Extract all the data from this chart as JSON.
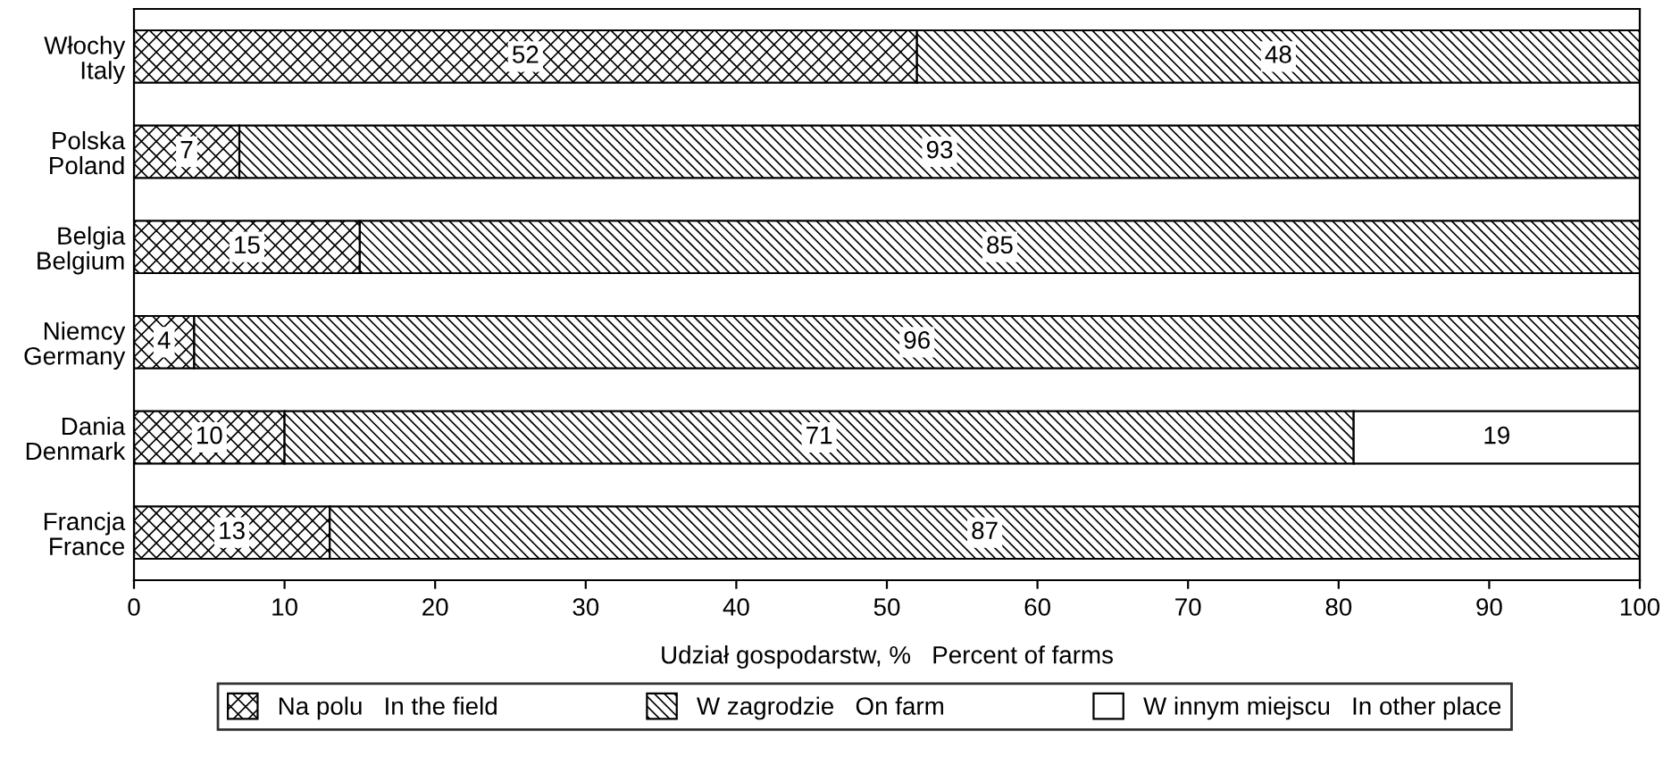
{
  "chart_data": {
    "type": "bar",
    "orientation": "horizontal",
    "stacked": true,
    "xlabel": "Udział gospodarstw, %   Percent of farms",
    "categories": [
      "Włochy\nItaly",
      "Polska\nPoland",
      "Belgia\nBelgium",
      "Niemcy\nGermany",
      "Dania\nDenmark",
      "Francja\nFrance"
    ],
    "series": [
      {
        "name": "Na polu   In the field",
        "color": "#000000",
        "values": [
          52,
          7,
          15,
          4,
          10,
          13
        ]
      },
      {
        "name": "W zagrodzie   On farm",
        "color": "#000000",
        "values": [
          48,
          93,
          85,
          96,
          71,
          87
        ]
      },
      {
        "name": "W innym miejscu   In other place",
        "color": "#ffffff",
        "values": [
          null,
          null,
          null,
          null,
          19,
          null
        ]
      }
    ],
    "xlim": [
      0,
      100
    ],
    "xticks": [
      0,
      10,
      20,
      30,
      40,
      50,
      60,
      70,
      80,
      90,
      100
    ],
    "data_labels": true,
    "grid": false,
    "legend": "bottom"
  }
}
